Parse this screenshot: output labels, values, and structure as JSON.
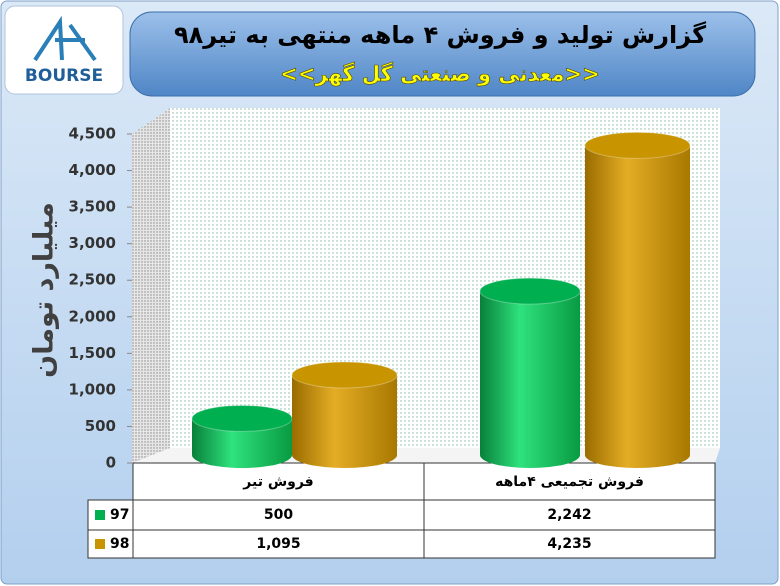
{
  "chart_data": {
    "type": "cylinder-bar",
    "title": "گزارش تولید و فروش ۴ ماهه منتهی به تیر۹۸",
    "subtitle": "<<معدنی و صنعتی گل گهر>>",
    "logo": "BOURSE",
    "y_label": "میلیارد تومان",
    "categories": [
      "فروش تیر",
      "فروش تجمیعی ۴ماهه"
    ],
    "series": [
      {
        "name": "97",
        "color": "#00b050",
        "values": [
          500,
          2242
        ],
        "value_labels": [
          "500",
          "2,242"
        ]
      },
      {
        "name": "98",
        "color": "#c89400",
        "values": [
          1095,
          4235
        ],
        "value_labels": [
          "1,095",
          "4,235"
        ]
      }
    ],
    "ylim": [
      0,
      4500
    ],
    "yticks": [
      0,
      500,
      {
        "value": 1000,
        "label": "1,000"
      },
      {
        "value": 1500,
        "label": "1,500"
      },
      {
        "value": 2000,
        "label": "2,000"
      },
      {
        "value": 2500,
        "label": "2,500"
      },
      {
        "value": 3000,
        "label": "3,000"
      },
      {
        "value": 3500,
        "label": "3,500"
      },
      {
        "value": 4000,
        "label": "4,000"
      },
      {
        "value": 4500,
        "label": "4,500"
      }
    ]
  }
}
